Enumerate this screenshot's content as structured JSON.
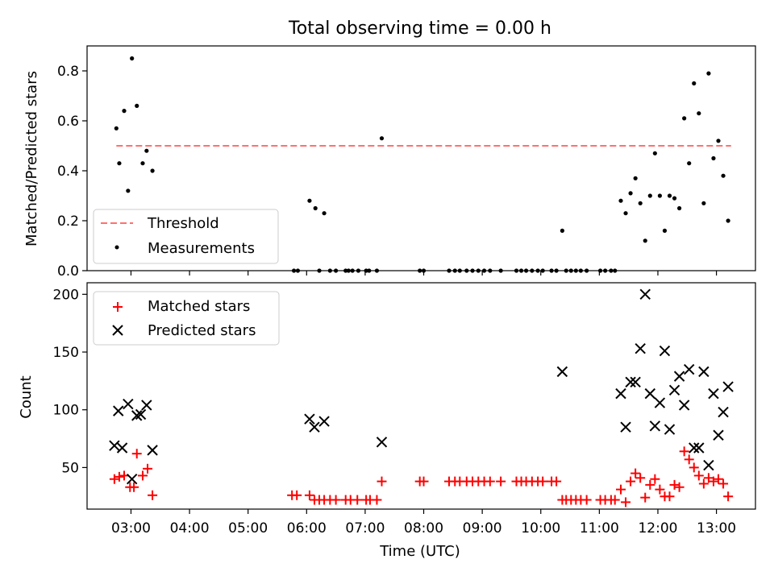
{
  "chart_data": [
    {
      "type": "scatter",
      "title": "Total observing time = 0.00 h",
      "ylabel": "Matched/Predicted stars",
      "xlabel": "",
      "ylim": [
        0,
        0.9
      ],
      "yticks": [
        0.0,
        0.2,
        0.4,
        0.6,
        0.8
      ],
      "legend": {
        "placement": "lower-left"
      },
      "threshold": {
        "name": "Threshold",
        "value": 0.5,
        "x_start": "02:45",
        "x_end": "13:15",
        "color": "#ff7070"
      },
      "series": [
        {
          "name": "Measurements",
          "color": "#000000",
          "marker": "dot",
          "points": [
            [
              "02:45",
              0.57
            ],
            [
              "02:48",
              0.43
            ],
            [
              "02:53",
              0.64
            ],
            [
              "02:57",
              0.32
            ],
            [
              "03:01",
              0.85
            ],
            [
              "03:06",
              0.66
            ],
            [
              "03:12",
              0.43
            ],
            [
              "03:16",
              0.48
            ],
            [
              "03:22",
              0.4
            ],
            [
              "05:47",
              0.0
            ],
            [
              "05:51",
              0.0
            ],
            [
              "06:03",
              0.28
            ],
            [
              "06:09",
              0.25
            ],
            [
              "06:13",
              0.0
            ],
            [
              "06:18",
              0.23
            ],
            [
              "06:24",
              0.0
            ],
            [
              "06:30",
              0.0
            ],
            [
              "06:40",
              0.0
            ],
            [
              "06:43",
              0.0
            ],
            [
              "06:47",
              0.0
            ],
            [
              "06:53",
              0.0
            ],
            [
              "07:01",
              0.0
            ],
            [
              "07:04",
              0.0
            ],
            [
              "07:12",
              0.0
            ],
            [
              "07:17",
              0.53
            ],
            [
              "07:56",
              0.0
            ],
            [
              "08:00",
              0.0
            ],
            [
              "08:26",
              0.0
            ],
            [
              "08:32",
              0.0
            ],
            [
              "08:37",
              0.0
            ],
            [
              "08:44",
              0.0
            ],
            [
              "08:50",
              0.0
            ],
            [
              "08:56",
              0.0
            ],
            [
              "09:02",
              0.0
            ],
            [
              "09:08",
              0.0
            ],
            [
              "09:19",
              0.0
            ],
            [
              "09:35",
              0.0
            ],
            [
              "09:40",
              0.0
            ],
            [
              "09:45",
              0.0
            ],
            [
              "09:51",
              0.0
            ],
            [
              "09:57",
              0.0
            ],
            [
              "10:02",
              0.0
            ],
            [
              "10:11",
              0.0
            ],
            [
              "10:16",
              0.0
            ],
            [
              "10:22",
              0.16
            ],
            [
              "10:26",
              0.0
            ],
            [
              "10:31",
              0.0
            ],
            [
              "10:36",
              0.0
            ],
            [
              "10:41",
              0.0
            ],
            [
              "10:47",
              0.0
            ],
            [
              "11:01",
              0.0
            ],
            [
              "11:06",
              0.0
            ],
            [
              "11:12",
              0.0
            ],
            [
              "11:16",
              0.0
            ],
            [
              "11:22",
              0.28
            ],
            [
              "11:27",
              0.23
            ],
            [
              "11:32",
              0.31
            ],
            [
              "11:37",
              0.37
            ],
            [
              "11:42",
              0.27
            ],
            [
              "11:47",
              0.12
            ],
            [
              "11:52",
              0.3
            ],
            [
              "11:57",
              0.47
            ],
            [
              "12:02",
              0.3
            ],
            [
              "12:07",
              0.16
            ],
            [
              "12:12",
              0.3
            ],
            [
              "12:17",
              0.29
            ],
            [
              "12:22",
              0.25
            ],
            [
              "12:27",
              0.61
            ],
            [
              "12:32",
              0.43
            ],
            [
              "12:37",
              0.75
            ],
            [
              "12:42",
              0.63
            ],
            [
              "12:47",
              0.27
            ],
            [
              "12:52",
              0.79
            ],
            [
              "12:57",
              0.45
            ],
            [
              "13:02",
              0.52
            ],
            [
              "13:07",
              0.38
            ],
            [
              "13:12",
              0.2
            ]
          ]
        }
      ]
    },
    {
      "type": "scatter",
      "title": "",
      "ylabel": "Count",
      "xlabel": "Time (UTC)",
      "ylim": [
        14,
        210
      ],
      "yticks": [
        50,
        100,
        150,
        200
      ],
      "xlim": [
        "02:15",
        "13:40"
      ],
      "xticks": [
        "03:00",
        "04:00",
        "05:00",
        "06:00",
        "07:00",
        "08:00",
        "09:00",
        "10:00",
        "11:00",
        "12:00",
        "13:00"
      ],
      "legend": {
        "placement": "upper-left"
      },
      "series": [
        {
          "name": "Matched stars",
          "color": "#ff0000",
          "marker": "plus",
          "points": [
            [
              "02:43",
              40
            ],
            [
              "02:48",
              42
            ],
            [
              "02:53",
              43
            ],
            [
              "02:59",
              33
            ],
            [
              "03:03",
              33
            ],
            [
              "03:06",
              62
            ],
            [
              "03:12",
              43
            ],
            [
              "03:17",
              49
            ],
            [
              "03:22",
              26
            ],
            [
              "05:45",
              26
            ],
            [
              "05:50",
              26
            ],
            [
              "06:03",
              26
            ],
            [
              "06:08",
              22
            ],
            [
              "06:13",
              22
            ],
            [
              "06:18",
              22
            ],
            [
              "06:24",
              22
            ],
            [
              "06:30",
              22
            ],
            [
              "06:40",
              22
            ],
            [
              "06:45",
              22
            ],
            [
              "06:52",
              22
            ],
            [
              "07:01",
              22
            ],
            [
              "07:05",
              22
            ],
            [
              "07:12",
              22
            ],
            [
              "07:17",
              38
            ],
            [
              "07:56",
              38
            ],
            [
              "08:00",
              38
            ],
            [
              "08:26",
              38
            ],
            [
              "08:32",
              38
            ],
            [
              "08:37",
              38
            ],
            [
              "08:44",
              38
            ],
            [
              "08:50",
              38
            ],
            [
              "08:56",
              38
            ],
            [
              "09:02",
              38
            ],
            [
              "09:08",
              38
            ],
            [
              "09:19",
              38
            ],
            [
              "09:35",
              38
            ],
            [
              "09:40",
              38
            ],
            [
              "09:45",
              38
            ],
            [
              "09:51",
              38
            ],
            [
              "09:57",
              38
            ],
            [
              "10:02",
              38
            ],
            [
              "10:11",
              38
            ],
            [
              "10:16",
              38
            ],
            [
              "10:22",
              22
            ],
            [
              "10:26",
              22
            ],
            [
              "10:31",
              22
            ],
            [
              "10:36",
              22
            ],
            [
              "10:41",
              22
            ],
            [
              "10:47",
              22
            ],
            [
              "11:01",
              22
            ],
            [
              "11:06",
              22
            ],
            [
              "11:12",
              22
            ],
            [
              "11:16",
              22
            ],
            [
              "11:22",
              31
            ],
            [
              "11:27",
              20
            ],
            [
              "11:32",
              38
            ],
            [
              "11:37",
              45
            ],
            [
              "11:42",
              41
            ],
            [
              "11:47",
              24
            ],
            [
              "11:52",
              35
            ],
            [
              "11:57",
              40
            ],
            [
              "12:02",
              31
            ],
            [
              "12:07",
              25
            ],
            [
              "12:12",
              25
            ],
            [
              "12:17",
              35
            ],
            [
              "12:22",
              33
            ],
            [
              "12:27",
              64
            ],
            [
              "12:32",
              57
            ],
            [
              "12:37",
              50
            ],
            [
              "12:42",
              43
            ],
            [
              "12:47",
              36
            ],
            [
              "12:52",
              41
            ],
            [
              "12:57",
              38
            ],
            [
              "13:02",
              40
            ],
            [
              "13:07",
              36
            ],
            [
              "13:12",
              25
            ]
          ]
        },
        {
          "name": "Predicted stars",
          "color": "#000000",
          "marker": "x",
          "points": [
            [
              "02:43",
              69
            ],
            [
              "02:47",
              99
            ],
            [
              "02:51",
              67
            ],
            [
              "02:57",
              105
            ],
            [
              "03:01",
              40
            ],
            [
              "03:06",
              95
            ],
            [
              "03:10",
              96
            ],
            [
              "03:16",
              104
            ],
            [
              "03:22",
              65
            ],
            [
              "06:03",
              92
            ],
            [
              "06:08",
              85
            ],
            [
              "06:18",
              90
            ],
            [
              "07:17",
              72
            ],
            [
              "10:22",
              133
            ],
            [
              "11:22",
              114
            ],
            [
              "11:27",
              85
            ],
            [
              "11:32",
              124
            ],
            [
              "11:37",
              124
            ],
            [
              "11:42",
              153
            ],
            [
              "11:47",
              200
            ],
            [
              "11:52",
              114
            ],
            [
              "11:57",
              86
            ],
            [
              "12:02",
              106
            ],
            [
              "12:07",
              151
            ],
            [
              "12:12",
              83
            ],
            [
              "12:17",
              117
            ],
            [
              "12:22",
              129
            ],
            [
              "12:27",
              104
            ],
            [
              "12:32",
              135
            ],
            [
              "12:37",
              67
            ],
            [
              "12:42",
              67
            ],
            [
              "12:47",
              133
            ],
            [
              "12:52",
              52
            ],
            [
              "12:57",
              114
            ],
            [
              "13:02",
              78
            ],
            [
              "13:07",
              98
            ],
            [
              "13:12",
              120
            ]
          ]
        }
      ]
    }
  ]
}
